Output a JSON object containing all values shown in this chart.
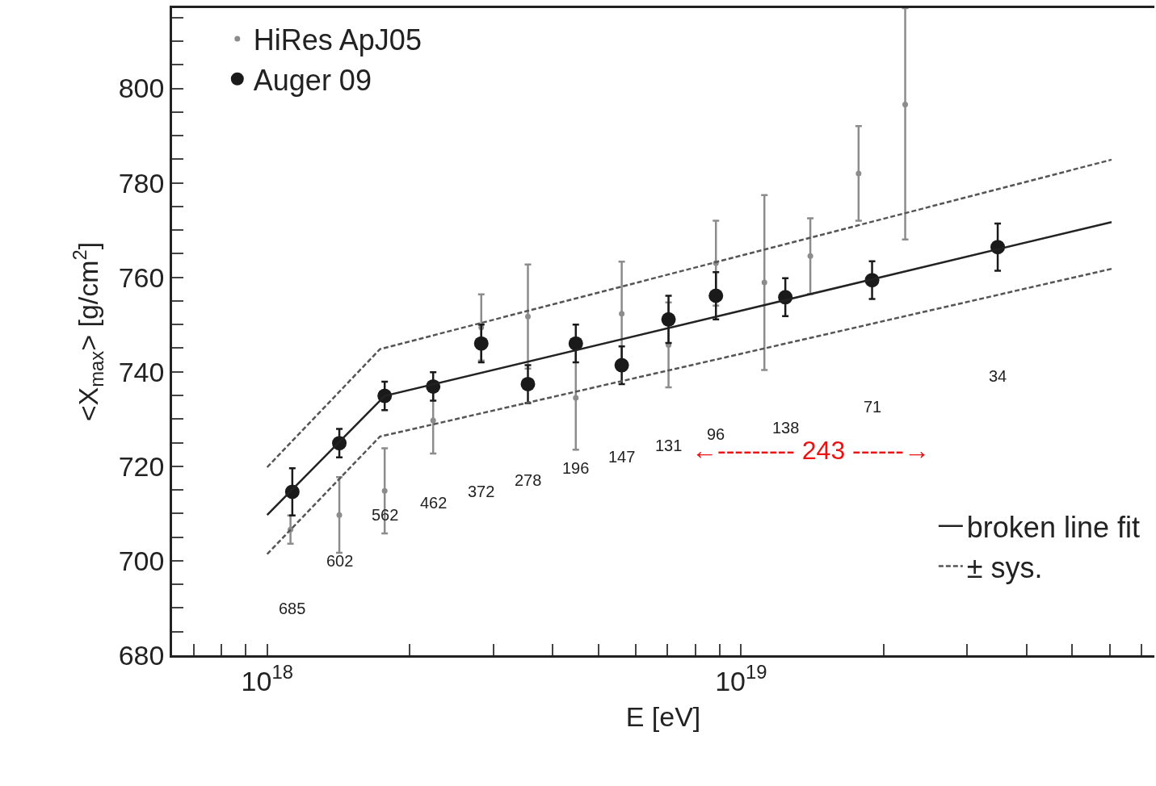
{
  "chart_data": {
    "type": "scatter",
    "xlabel": "E [eV]",
    "ylabel": "<X$_{max}$> [g/cm$^{2}$]",
    "log": "x",
    "legend": "top left",
    "xlim": [
      6.3e+17,
      7.45e+19
    ],
    "ylim": [
      680,
      817
    ],
    "xticks": [
      {
        "value": 7e+17,
        "label": null
      },
      {
        "value": 8e+17,
        "label": null
      },
      {
        "value": 9e+17,
        "label": null
      },
      {
        "value": 1e+18,
        "label": "10$^{18}$"
      },
      {
        "value": 2e+18,
        "label": null
      },
      {
        "value": 3e+18,
        "label": null
      },
      {
        "value": 4e+18,
        "label": null
      },
      {
        "value": 5e+18,
        "label": null
      },
      {
        "value": 6e+18,
        "label": null
      },
      {
        "value": 7e+18,
        "label": null
      },
      {
        "value": 8e+18,
        "label": null
      },
      {
        "value": 9e+18,
        "label": null
      },
      {
        "value": 1e+19,
        "label": "10$^{19}$"
      },
      {
        "value": 2e+19,
        "label": null
      },
      {
        "value": 3e+19,
        "label": null
      },
      {
        "value": 4e+19,
        "label": null
      },
      {
        "value": 5e+19,
        "label": null
      },
      {
        "value": 6e+19,
        "label": null
      },
      {
        "value": 7e+19,
        "label": null
      }
    ],
    "yticks": [
      680,
      {
        "value": 685,
        "label": null
      },
      {
        "value": 690,
        "label": null
      },
      {
        "value": 695,
        "label": null
      },
      700,
      {
        "value": 705,
        "label": null
      },
      {
        "value": 710,
        "label": null
      },
      {
        "value": 715,
        "label": null
      },
      720,
      {
        "value": 725,
        "label": null
      },
      {
        "value": 730,
        "label": null
      },
      {
        "value": 735,
        "label": null
      },
      740,
      {
        "value": 745,
        "label": null
      },
      {
        "value": 750,
        "label": null
      },
      {
        "value": 755,
        "label": null
      },
      760,
      {
        "value": 765,
        "label": null
      },
      {
        "value": 770,
        "label": null
      },
      {
        "value": 775,
        "label": null
      },
      780,
      {
        "value": 785,
        "label": null
      },
      {
        "value": 790,
        "label": null
      },
      {
        "value": 795,
        "label": null
      },
      800,
      {
        "value": 805,
        "label": null
      },
      {
        "value": 810,
        "label": null
      },
      {
        "value": 815,
        "label": null
      }
    ],
    "series": [
      {
        "name": "HiRes ApJ05",
        "color": "#8c8c8c",
        "marker": "circle",
        "x": [
          1.12e+18,
          1.42e+18,
          1.77e+18,
          2.24e+18,
          2.83e+18,
          3.55e+18,
          4.48e+18,
          5.6e+18,
          7.03e+18,
          8.85e+18,
          1.12e+19,
          1.4e+19,
          1.77e+19,
          2.22e+19
        ],
        "values": [
          706.6,
          709.7,
          714.8,
          729.7,
          749.4,
          751.7,
          734.5,
          752.3,
          745.7,
          763,
          758.9,
          764.5,
          782,
          796.6
        ],
        "errors": [
          3,
          8,
          9,
          7,
          7,
          11,
          11,
          11,
          9,
          9,
          18.5,
          8,
          10,
          [
            768,
            817
          ]
        ]
      },
      {
        "name": "Auger 09",
        "color": "#1a1a1a",
        "marker": "circle",
        "x": [
          1.13e+18,
          1.42e+18,
          1.77e+18,
          2.24e+18,
          2.83e+18,
          3.55e+18,
          4.48e+18,
          5.6e+18,
          7.03e+18,
          8.85e+18,
          1.24e+19,
          1.89e+19,
          3.48e+19
        ],
        "values": [
          714.6,
          724.9,
          734.9,
          736.9,
          746,
          737.4,
          746,
          741.4,
          751.1,
          756.1,
          755.8,
          759.4,
          766.4
        ],
        "errors": [
          5,
          3,
          3,
          3,
          4,
          4,
          4,
          4,
          5,
          5,
          4,
          4,
          5
        ]
      },
      {
        "type": "line",
        "name": "broken line fit",
        "color": "#222222",
        "line_style": "solid",
        "x": [
          1e+18,
          1.77e+18,
          6.05e+19
        ],
        "values": [
          709.7,
          734.9,
          771.7
        ]
      },
      {
        "type": "line",
        "name": "± sys.",
        "color": "#555555",
        "line_style": "dashed",
        "x": [
          1e+18,
          1.73e+18,
          6.05e+19
        ],
        "values": [
          719.8,
          744.8,
          784.9
        ]
      },
      {
        "type": "line",
        "color": "#555555",
        "line_style": "dashed",
        "x": [
          1e+18,
          1.73e+18,
          6.05e+19
        ],
        "values": [
          701.4,
          726.3,
          761.8
        ]
      }
    ],
    "annotations": [
      "685",
      "602",
      "562",
      "462",
      "372",
      "278",
      "196",
      "147",
      "131",
      "96",
      "138",
      "71",
      "34",
      "←--------- 243 ------→"
    ]
  }
}
